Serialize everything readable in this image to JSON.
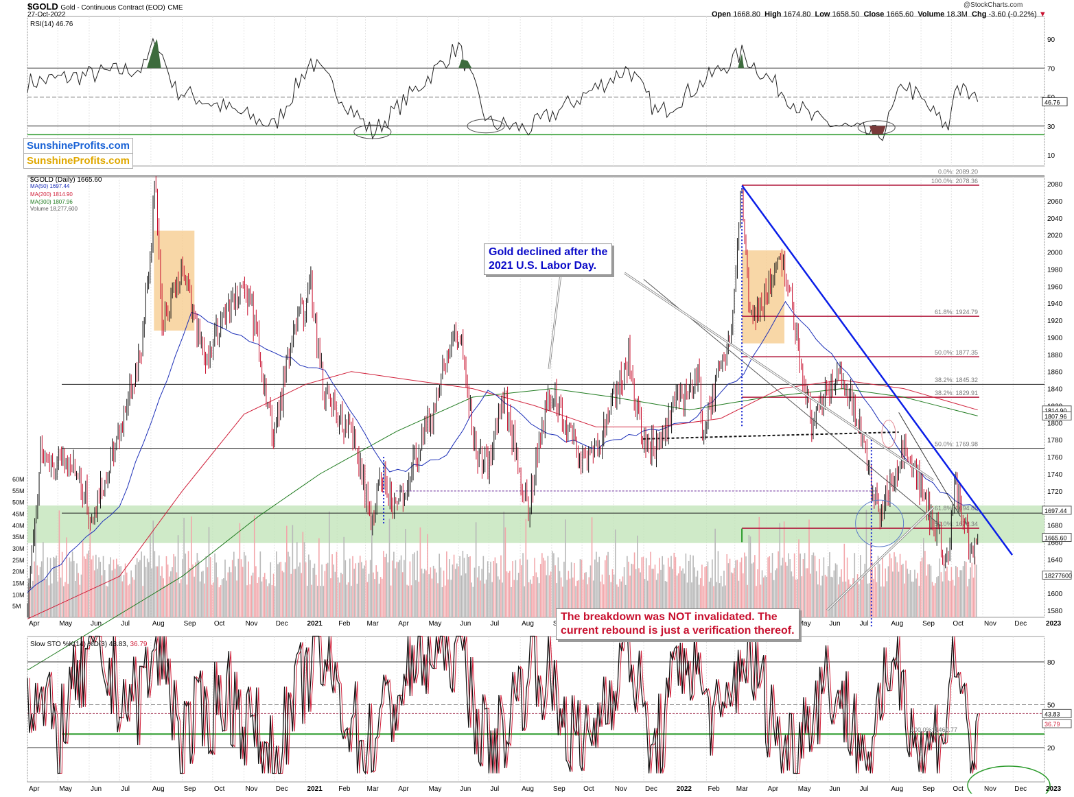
{
  "header": {
    "symbol": "$GOLD",
    "description": "Gold - Continuous Contract (EOD)",
    "exchange": "CME",
    "date": "27-Oct-2022",
    "open_label": "Open",
    "open": "1668.80",
    "high_label": "High",
    "high": "1674.80",
    "low_label": "Low",
    "low": "1658.50",
    "close_label": "Close",
    "close": "1665.60",
    "volume_label": "Volume",
    "volume": "18.3M",
    "chg_label": "Chg",
    "chg": "-3.60 (-0.22%)",
    "copyright": "@StockCharts.com"
  },
  "branding": {
    "line1": "SunshineProfits.com",
    "line2": "SunshineProfits.com"
  },
  "colors": {
    "up_candle": "#111111",
    "down_candle": "#c8102e",
    "ma50": "#1c2fb8",
    "ma200": "#d0203a",
    "ma300": "#1e7a1e",
    "support_band": "#bfe3b5",
    "shade_box": "#f5c98a",
    "trendline": "#0a1ee8",
    "fib_line": "#b0163a",
    "rsi_fill_high": "#3d6b3d",
    "rsi_fill_low": "#7a3a3a",
    "callout_blue": "#0a0ac8",
    "callout_red": "#c8102e"
  },
  "rsi_panel": {
    "legend": "RSI(14) 46.76",
    "current_label": "46.76",
    "levels": [
      "90",
      "70",
      "50",
      "30",
      "10"
    ]
  },
  "price_panel": {
    "legend_title": "$GOLD (Daily) 1665.60",
    "legend_ma50": "MA(50) 1697.44",
    "legend_ma200": "MA(200) 1814.90",
    "legend_ma300": "MA(300) 1807.96",
    "legend_volume": "Volume 18,277,600",
    "price_ticks": [
      "2080",
      "2060",
      "2040",
      "2020",
      "2000",
      "1980",
      "1960",
      "1940",
      "1920",
      "1900",
      "1880",
      "1860",
      "1840",
      "1820",
      "1800",
      "1780",
      "1760",
      "1740",
      "1720",
      "1700",
      "1680",
      "1660",
      "1640",
      "1620",
      "1600",
      "1580"
    ],
    "volume_ticks": [
      "60M",
      "55M",
      "50M",
      "45M",
      "40M",
      "35M",
      "30M",
      "25M",
      "20M",
      "15M",
      "10M",
      "5M"
    ],
    "fib_labels": [
      "0.0%: 2089.20",
      "100.0%: 2078.36",
      "61.8%: 1924.79",
      "50.0%: 1877.35",
      "38.2%: 1845.32",
      "38.2%: 1829.91",
      "50.0%: 1769.98",
      "61.8%: 1694.85",
      "50.0%: 1676.34"
    ],
    "side_labels": {
      "ma200": "1814.90",
      "ma300": "1807.96",
      "ma50": "1697.44",
      "close": "1665.60",
      "volume": "18277600"
    }
  },
  "sto_panel": {
    "legend_prefix": "Slow STO %K(14) %D(3)",
    "legend_k": "43.83",
    "legend_d": "36.79",
    "levels": [
      "80",
      "50",
      "20"
    ],
    "side_k": "43.83",
    "side_d": "36.79",
    "fib_label": "100.0%: 1460.77"
  },
  "x_axis": {
    "labels": [
      "Apr",
      "May",
      "Jun",
      "Jul",
      "Aug",
      "Sep",
      "Oct",
      "Nov",
      "Dec",
      "2021",
      "Feb",
      "Mar",
      "Apr",
      "May",
      "Jun",
      "Jul",
      "Aug",
      "Sep",
      "Oct",
      "Nov",
      "Dec",
      "2022",
      "Feb",
      "Mar",
      "Apr",
      "May",
      "Jun",
      "Jul",
      "Aug",
      "Sep",
      "Oct",
      "Nov",
      "Dec",
      "2023"
    ]
  },
  "annotations": {
    "callout_blue": [
      "Gold declined after the",
      "2021 U.S. Labor Day."
    ],
    "callout_red": [
      "The breakdown was NOT invalidated. The",
      "current rebound is just a verification thereof."
    ]
  },
  "chart_data": {
    "type": "line",
    "title": "$GOLD Gold - Continuous Contract (EOD) CME",
    "ylim": [
      1570,
      2100
    ],
    "date_range": [
      "2020-04-01",
      "2022-10-27"
    ],
    "series": [
      {
        "name": "$GOLD (Daily)",
        "x": [
          "2020-04-01",
          "2020-04-14",
          "2020-05-15",
          "2020-06-05",
          "2020-07-01",
          "2020-07-24",
          "2020-08-06",
          "2020-08-12",
          "2020-08-31",
          "2020-09-24",
          "2020-10-12",
          "2020-11-06",
          "2020-11-30",
          "2020-12-17",
          "2021-01-06",
          "2021-01-18",
          "2021-02-15",
          "2021-03-08",
          "2021-03-18",
          "2021-03-31",
          "2021-04-30",
          "2021-05-28",
          "2021-06-04",
          "2021-06-17",
          "2021-06-30",
          "2021-07-15",
          "2021-08-09",
          "2021-08-27",
          "2021-09-03",
          "2021-09-30",
          "2021-10-21",
          "2021-11-16",
          "2021-11-30",
          "2021-12-15",
          "2022-01-05",
          "2022-01-25",
          "2022-01-28",
          "2022-02-24",
          "2022-03-08",
          "2022-03-16",
          "2022-04-18",
          "2022-05-16",
          "2022-06-13",
          "2022-07-01",
          "2022-07-21",
          "2022-08-17",
          "2022-09-01",
          "2022-09-28",
          "2022-10-04",
          "2022-10-21",
          "2022-10-27"
        ],
        "y": [
          1590,
          1760,
          1750,
          1690,
          1790,
          1900,
          2080,
          1920,
          1980,
          1870,
          1930,
          1955,
          1780,
          1890,
          1960,
          1840,
          1790,
          1680,
          1740,
          1700,
          1790,
          1905,
          1890,
          1770,
          1750,
          1830,
          1700,
          1820,
          1835,
          1755,
          1785,
          1875,
          1785,
          1770,
          1830,
          1850,
          1790,
          1900,
          2078,
          1920,
          1990,
          1800,
          1860,
          1800,
          1690,
          1780,
          1720,
          1640,
          1730,
          1640,
          1665
        ]
      },
      {
        "name": "MA(50)",
        "x": [
          "2020-04-01",
          "2020-07-01",
          "2020-09-10",
          "2020-12-01",
          "2021-01-20",
          "2021-03-25",
          "2021-05-20",
          "2021-06-30",
          "2021-08-20",
          "2021-10-10",
          "2021-12-01",
          "2022-01-15",
          "2022-03-10",
          "2022-04-20",
          "2022-06-20",
          "2022-08-15",
          "2022-09-20",
          "2022-10-27"
        ],
        "y": [
          1600,
          1700,
          1930,
          1880,
          1860,
          1740,
          1760,
          1840,
          1790,
          1770,
          1790,
          1800,
          1860,
          1940,
          1860,
          1760,
          1720,
          1697
        ]
      },
      {
        "name": "MA(200)",
        "x": [
          "2020-04-01",
          "2020-07-01",
          "2020-09-01",
          "2020-11-01",
          "2021-01-01",
          "2021-02-15",
          "2021-04-15",
          "2021-06-15",
          "2021-08-15",
          "2021-10-15",
          "2021-12-15",
          "2022-02-15",
          "2022-04-15",
          "2022-06-15",
          "2022-08-15",
          "2022-10-27"
        ],
        "y": [
          1570,
          1620,
          1720,
          1810,
          1845,
          1860,
          1850,
          1840,
          1820,
          1795,
          1795,
          1805,
          1840,
          1850,
          1840,
          1815
        ]
      },
      {
        "name": "MA(300)",
        "x": [
          "2020-04-01",
          "2020-09-01",
          "2020-11-15",
          "2021-01-15",
          "2021-04-01",
          "2021-06-15",
          "2021-09-01",
          "2021-11-01",
          "2022-01-15",
          "2022-04-01",
          "2022-06-15",
          "2022-08-15",
          "2022-10-27"
        ],
        "y": [
          1510,
          1620,
          1690,
          1740,
          1790,
          1830,
          1840,
          1830,
          1815,
          1830,
          1840,
          1830,
          1808
        ]
      },
      {
        "name": "RSI(14)",
        "x": [
          "2020-04-01",
          "2020-07-25",
          "2020-08-06",
          "2020-08-25",
          "2020-12-01",
          "2021-01-06",
          "2021-03-08",
          "2021-06-01",
          "2021-06-30",
          "2021-08-09",
          "2021-11-16",
          "2021-12-15",
          "2022-03-08",
          "2022-05-16",
          "2022-07-15",
          "2022-07-25",
          "2022-08-15",
          "2022-09-28",
          "2022-10-04",
          "2022-10-27"
        ],
        "y": [
          60,
          70,
          90,
          55,
          30,
          75,
          25,
          85,
          32,
          28,
          70,
          38,
          80,
          35,
          24,
          24,
          60,
          28,
          58,
          46.76
        ]
      },
      {
        "name": "Slow STO %K(14)",
        "x": [
          "2020-04-01",
          "2020-05-01",
          "2020-06-01",
          "2020-07-15",
          "2020-08-10",
          "2020-09-01",
          "2020-10-15",
          "2020-12-01",
          "2021-01-10",
          "2021-03-01",
          "2021-04-20",
          "2021-06-01",
          "2021-07-01",
          "2021-08-15",
          "2021-10-01",
          "2021-11-15",
          "2021-12-10",
          "2022-01-10",
          "2022-02-15",
          "2022-03-10",
          "2022-04-20",
          "2022-06-01",
          "2022-07-15",
          "2022-08-05",
          "2022-09-01",
          "2022-09-25",
          "2022-10-04",
          "2022-10-20",
          "2022-10-27"
        ],
        "y": [
          60,
          30,
          85,
          50,
          92,
          25,
          60,
          8,
          90,
          20,
          80,
          95,
          10,
          85,
          15,
          95,
          10,
          90,
          30,
          92,
          15,
          70,
          8,
          95,
          10,
          40,
          88,
          15,
          43.83
        ]
      }
    ],
    "horizontal_levels": [
      2089.2,
      2078.36,
      1924.79,
      1877.35,
      1845.32,
      1829.91,
      1769.98,
      1694.85,
      1676.34
    ],
    "support_band": [
      1659,
      1703
    ],
    "rsi_levels": [
      70,
      50,
      30
    ],
    "sto_levels": [
      80,
      50,
      20
    ],
    "latest": {
      "close": 1665.6,
      "ma50": 1697.44,
      "ma200": 1814.9,
      "ma300": 1807.96,
      "rsi": 46.76,
      "sto_k": 43.83,
      "sto_d": 36.79,
      "volume": 18277600
    }
  }
}
